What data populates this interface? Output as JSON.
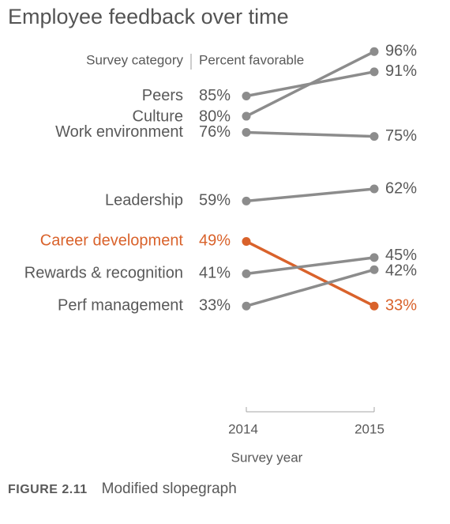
{
  "chart_data": {
    "type": "slope",
    "title": "Employee feedback over time",
    "header_left": "Survey category",
    "header_right": "Percent favorable",
    "xlabel": "Survey year",
    "x": [
      "2014",
      "2015"
    ],
    "series": [
      {
        "name": "Peers",
        "values": [
          85,
          91
        ],
        "labels": [
          "85%",
          "91%"
        ],
        "highlight": false
      },
      {
        "name": "Culture",
        "values": [
          80,
          96
        ],
        "labels": [
          "80%",
          "96%"
        ],
        "highlight": false
      },
      {
        "name": "Work environment",
        "values": [
          76,
          75
        ],
        "labels": [
          "76%",
          "75%"
        ],
        "highlight": false
      },
      {
        "name": "Leadership",
        "values": [
          59,
          62
        ],
        "labels": [
          "59%",
          "62%"
        ],
        "highlight": false
      },
      {
        "name": "Career development",
        "values": [
          49,
          33
        ],
        "labels": [
          "49%",
          "33%"
        ],
        "highlight": true
      },
      {
        "name": "Rewards & recognition",
        "values": [
          41,
          45
        ],
        "labels": [
          "41%",
          "45%"
        ],
        "highlight": false
      },
      {
        "name": "Perf management",
        "values": [
          33,
          42
        ],
        "labels": [
          "33%",
          "42%"
        ],
        "highlight": false
      }
    ],
    "colors": {
      "default": "#8c8c8c",
      "highlight": "#d9622b",
      "text": "#595959"
    }
  },
  "figure_caption": {
    "label": "FIGURE 2.11",
    "text": "Modified slopegraph"
  }
}
